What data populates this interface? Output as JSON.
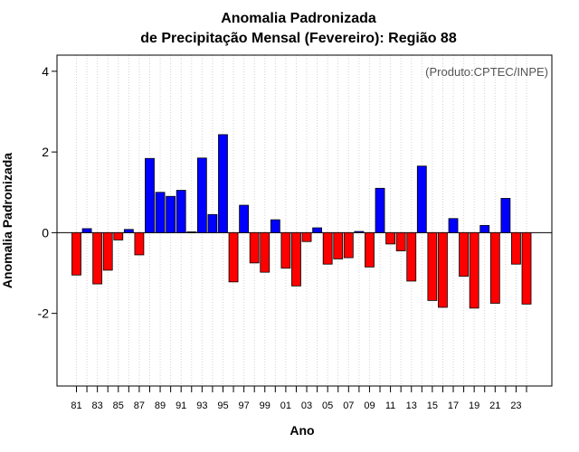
{
  "chart_data": {
    "type": "bar",
    "title": "Anomalia Padronizada",
    "subtitle": "de Precipitação Mensal (Fevereiro): Região 88",
    "xlabel": "Ano",
    "ylabel": "Anomalia Padronizada",
    "annotation": "(Produto:CPTEC/INPE)",
    "ylim": [
      -3.8,
      4.4
    ],
    "yticks": [
      -2,
      0,
      2,
      4
    ],
    "grid": "vertical dotted",
    "legend": "none",
    "categories": [
      "81",
      "82",
      "83",
      "84",
      "85",
      "86",
      "87",
      "88",
      "89",
      "90",
      "91",
      "92",
      "93",
      "94",
      "95",
      "96",
      "97",
      "98",
      "99",
      "00",
      "01",
      "02",
      "03",
      "04",
      "05",
      "06",
      "07",
      "08",
      "09",
      "10",
      "11",
      "12",
      "13",
      "14",
      "15",
      "16",
      "17",
      "18",
      "19",
      "20",
      "21",
      "22",
      "23",
      "24"
    ],
    "tick_labels": [
      "81",
      "83",
      "85",
      "87",
      "89",
      "91",
      "93",
      "95",
      "97",
      "99",
      "01",
      "03",
      "05",
      "07",
      "09",
      "11",
      "13",
      "15",
      "17",
      "19",
      "21",
      "23"
    ],
    "values": [
      -1.05,
      0.1,
      -1.27,
      -0.93,
      -0.18,
      0.08,
      -0.55,
      1.84,
      1.0,
      0.9,
      1.05,
      0.02,
      1.85,
      0.45,
      2.43,
      -1.22,
      0.68,
      -0.75,
      -0.98,
      0.32,
      -0.88,
      -1.32,
      -0.22,
      0.12,
      -0.78,
      -0.65,
      -0.62,
      0.03,
      -0.85,
      1.1,
      -0.28,
      -0.45,
      -1.2,
      1.65,
      -1.68,
      -1.85,
      0.35,
      -1.08,
      -1.87,
      0.18,
      -1.75,
      0.85,
      -0.78,
      -1.77
    ],
    "colors": {
      "positive": "#0000ff",
      "negative": "#ff0000",
      "grid": "#d3d3d3",
      "frame": "#000000",
      "annotation": "#555555"
    }
  }
}
